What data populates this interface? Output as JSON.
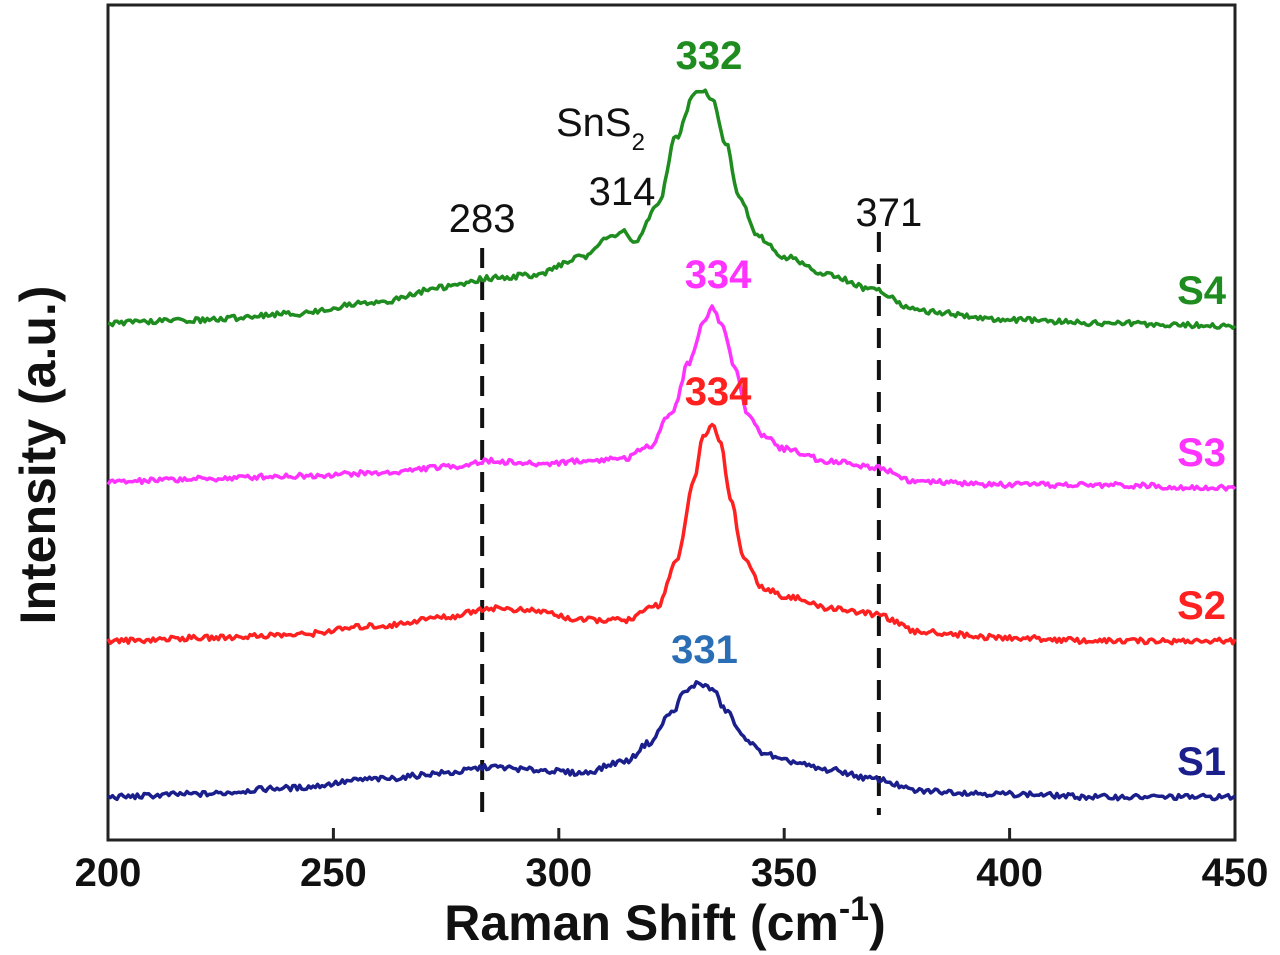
{
  "chart_data": {
    "type": "line",
    "xlabel": "Raman Shift",
    "xlabel_unit": "(cm",
    "xlabel_exp": "-1",
    "xlabel_close": ")",
    "ylabel": "Intensity (a.u.)",
    "xlim": [
      200,
      450
    ],
    "x_ticks": [
      "200",
      "250",
      "300",
      "350",
      "400",
      "450"
    ],
    "y_ticks_shown": false,
    "grid": false,
    "legend": "series labels at right end of each curve",
    "series": [
      {
        "name": "S1",
        "color": "#1a1f8c",
        "baseline": 0.0,
        "x": [
          200,
          220,
          240,
          260,
          275,
          285,
          295,
          305,
          315,
          320,
          325,
          328,
          331,
          334,
          337,
          341,
          345,
          350,
          360,
          370,
          380,
          400,
          420,
          450
        ],
        "y": [
          0.0,
          0.01,
          0.03,
          0.06,
          0.08,
          0.1,
          0.09,
          0.08,
          0.12,
          0.18,
          0.28,
          0.35,
          0.38,
          0.36,
          0.29,
          0.2,
          0.15,
          0.12,
          0.09,
          0.06,
          0.02,
          0.01,
          0.0,
          0.0
        ]
      },
      {
        "name": "S2",
        "color": "#ff2020",
        "baseline": 0.52,
        "x": [
          200,
          220,
          240,
          260,
          275,
          285,
          295,
          305,
          315,
          322,
          326,
          330,
          332,
          334,
          336,
          338,
          341,
          345,
          350,
          360,
          370,
          380,
          400,
          420,
          450
        ],
        "y": [
          0.52,
          0.53,
          0.54,
          0.57,
          0.6,
          0.63,
          0.62,
          0.59,
          0.59,
          0.64,
          0.78,
          1.05,
          1.2,
          1.24,
          1.18,
          1.0,
          0.8,
          0.7,
          0.67,
          0.63,
          0.61,
          0.55,
          0.53,
          0.52,
          0.52
        ]
      },
      {
        "name": "S3",
        "color": "#ff33ff",
        "baseline": 1.05,
        "x": [
          200,
          220,
          240,
          260,
          275,
          285,
          295,
          305,
          315,
          320,
          325,
          329,
          332,
          334,
          336,
          339,
          342,
          346,
          350,
          360,
          370,
          380,
          400,
          420,
          450
        ],
        "y": [
          1.05,
          1.06,
          1.07,
          1.08,
          1.1,
          1.12,
          1.11,
          1.12,
          1.13,
          1.17,
          1.28,
          1.45,
          1.58,
          1.63,
          1.58,
          1.44,
          1.27,
          1.2,
          1.16,
          1.12,
          1.1,
          1.05,
          1.04,
          1.04,
          1.03
        ]
      },
      {
        "name": "S4",
        "color": "#1e8c1e",
        "baseline": 1.58,
        "x": [
          200,
          220,
          240,
          260,
          275,
          285,
          295,
          305,
          312,
          314,
          317,
          322,
          326,
          330,
          332,
          334,
          337,
          340,
          344,
          350,
          360,
          370,
          380,
          400,
          420,
          450
        ],
        "y": [
          1.58,
          1.59,
          1.61,
          1.65,
          1.7,
          1.73,
          1.74,
          1.8,
          1.87,
          1.89,
          1.85,
          1.97,
          2.2,
          2.34,
          2.36,
          2.33,
          2.18,
          2.0,
          1.87,
          1.8,
          1.74,
          1.69,
          1.62,
          1.59,
          1.58,
          1.57
        ]
      }
    ],
    "peak_labels": [
      {
        "text": "331",
        "x": 331,
        "series": "S1",
        "color": "#2a6fb5"
      },
      {
        "text": "334",
        "x": 334,
        "series": "S2",
        "color": "#ff2020"
      },
      {
        "text": "334",
        "x": 334,
        "series": "S3",
        "color": "#ff33ff"
      },
      {
        "text": "332",
        "x": 332,
        "series": "S4",
        "color": "#1e8c1e"
      }
    ],
    "annotations": {
      "dashed_lines": [
        {
          "x": 283,
          "label": "283"
        },
        {
          "x": 371,
          "label": "371"
        }
      ],
      "shoulder_label": "314",
      "sns2_main": "SnS",
      "sns2_sub": "2"
    }
  }
}
